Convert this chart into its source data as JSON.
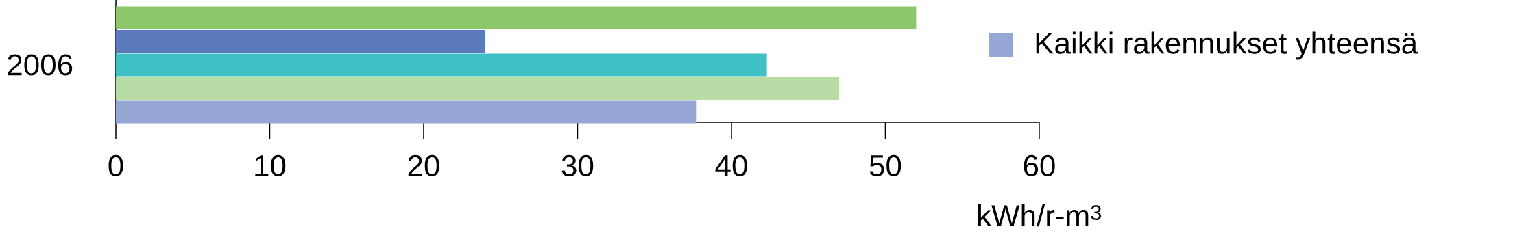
{
  "chart_data": {
    "type": "bar",
    "orientation": "horizontal",
    "categories": [
      "2006"
    ],
    "series": [
      {
        "color": "#8cc76b",
        "values": [
          52
        ]
      },
      {
        "color": "#5b79bd",
        "values": [
          24
        ]
      },
      {
        "color": "#3ec0c4",
        "values": [
          42.3
        ]
      },
      {
        "color": "#b8dca6",
        "values": [
          47
        ]
      },
      {
        "name": "Kaikki rakennukset yhteensä",
        "color": "#96a6d5",
        "values": [
          37.7
        ]
      }
    ],
    "xlim": [
      0,
      60
    ],
    "xticks": [
      0,
      10,
      20,
      30,
      40,
      50,
      60
    ],
    "xlabel": "kWh/r-m$^{3}$",
    "legend": "right"
  }
}
